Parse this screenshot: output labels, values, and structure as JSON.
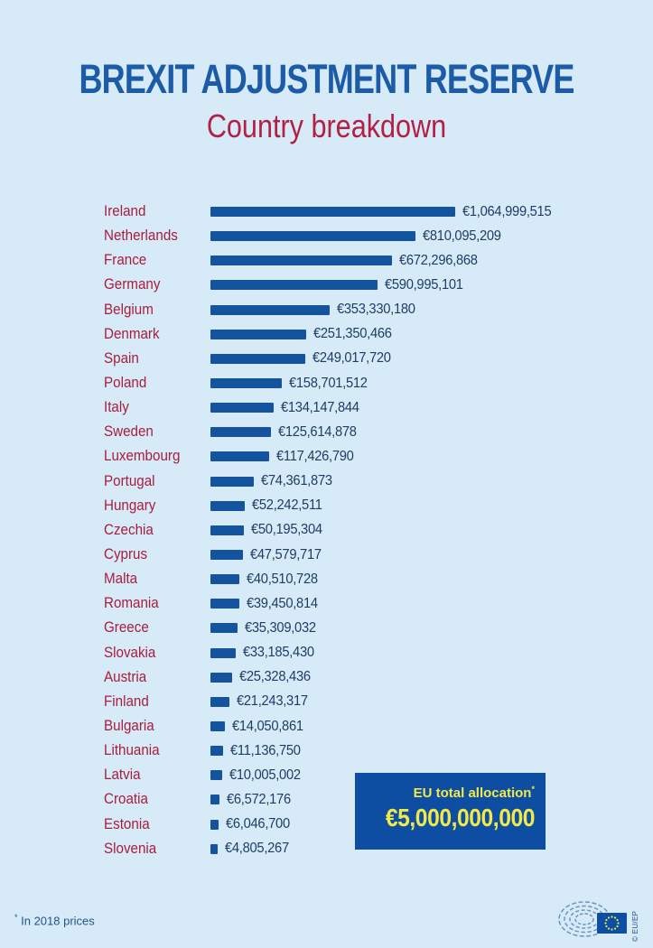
{
  "colors": {
    "background": "#d6eaf8",
    "title_blue": "#1b5ba8",
    "accent_red": "#b41f44",
    "country_label_red": "#a81e3d",
    "bar_blue": "#14549f",
    "value_navy": "#1e3c64",
    "total_box_blue": "#0d4da2",
    "total_box_yellow": "#f1e94a",
    "footnote_blue": "#21538d"
  },
  "chart_data": {
    "type": "bar",
    "orientation": "horizontal",
    "title": "BREXIT ADJUSTMENT RESERVE",
    "subtitle": "Country breakdown",
    "unit": "EUR",
    "legend": "none",
    "grid": false,
    "categories": [
      "Ireland",
      "Netherlands",
      "France",
      "Germany",
      "Belgium",
      "Denmark",
      "Spain",
      "Poland",
      "Italy",
      "Sweden",
      "Luxembourg",
      "Portugal",
      "Hungary",
      "Czechia",
      "Cyprus",
      "Malta",
      "Romania",
      "Greece",
      "Slovakia",
      "Austria",
      "Finland",
      "Bulgaria",
      "Lithuania",
      "Latvia",
      "Croatia",
      "Estonia",
      "Slovenia"
    ],
    "values": [
      1064999515,
      810095209,
      672296868,
      590995101,
      353330180,
      251350466,
      249017720,
      158701512,
      134147844,
      125614878,
      117426790,
      74361873,
      52242511,
      50195304,
      47579717,
      40510728,
      39450814,
      35309032,
      33185430,
      25328436,
      21243317,
      14050861,
      11136750,
      10005002,
      6572176,
      6046700,
      4805267
    ],
    "value_labels": [
      "€1,064,999,515",
      "€810,095,209",
      "€672,296,868",
      "€590,995,101",
      "€353,330,180",
      "€251,350,466",
      "€249,017,720",
      "€158,701,512",
      "€134,147,844",
      "€125,614,878",
      "€117,426,790",
      "€74,361,873",
      "€52,242,511",
      "€50,195,304",
      "€47,579,717",
      "€40,510,728",
      "€39,450,814",
      "€35,309,032",
      "€33,185,430",
      "€25,328,436",
      "€21,243,317",
      "€14,050,861",
      "€11,136,750",
      "€10,005,002",
      "€6,572,176",
      "€6,046,700",
      "€4,805,267"
    ],
    "total": {
      "label": "EU total allocation",
      "value": 5000000000,
      "value_label": "€5,000,000,000"
    }
  },
  "total_box": {
    "label": "EU total allocation",
    "asterisk": "*",
    "value_label": "€5,000,000,000"
  },
  "footnote": {
    "asterisk": "*",
    "text": " In 2018 prices"
  },
  "credit": "© EU/EP"
}
